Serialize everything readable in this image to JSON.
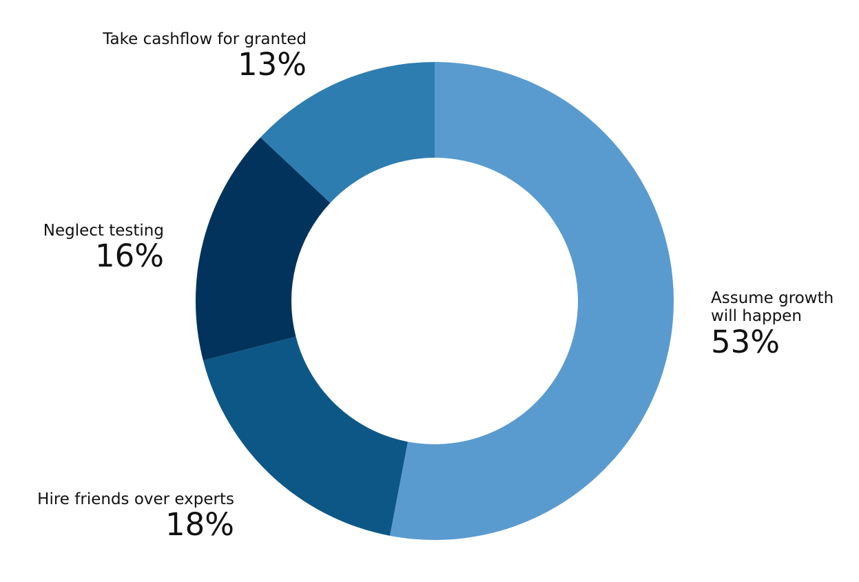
{
  "chart_data": {
    "type": "pie",
    "variant": "donut",
    "categories": [
      "Assume growth will happen",
      "Hire friends over experts",
      "Neglect testing",
      "Take cashflow for granted"
    ],
    "values": [
      53,
      18,
      16,
      13
    ],
    "label_text": [
      "Assume growth\nwill happen",
      "Hire friends over experts",
      "Neglect testing",
      "Take cashflow for granted"
    ],
    "value_labels": [
      "53%",
      "18%",
      "16%",
      "13%"
    ],
    "colors": [
      "#5a9bcf",
      "#0d5787",
      "#02335c",
      "#2e7db0"
    ],
    "start_angle_deg": 0,
    "direction": "clockwise"
  }
}
